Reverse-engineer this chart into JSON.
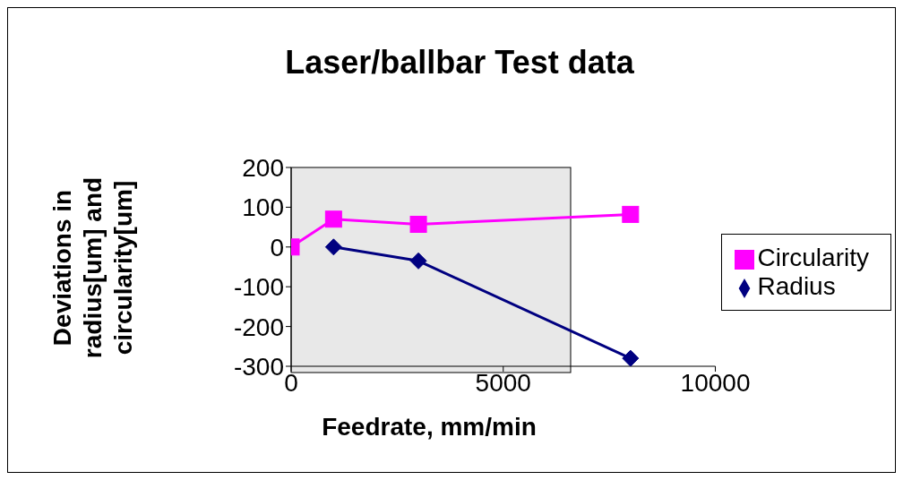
{
  "chart_data": {
    "type": "line",
    "title": "Laser/ballbar Test data",
    "xlabel": "Feedrate, mm/min",
    "ylabel": "Deviations in radius[um] and circularity[um]",
    "xlim": [
      0,
      10000
    ],
    "xticks": [
      0,
      5000,
      10000
    ],
    "ylim": [
      -300,
      200
    ],
    "yticks": [
      -300,
      -200,
      -100,
      0,
      100,
      200
    ],
    "grid": false,
    "legend": "right",
    "series": [
      {
        "name": "Radius",
        "color": "#000080",
        "marker": "diamond",
        "x": [
          1000,
          3000,
          8000
        ],
        "values": [
          0,
          -35,
          -280
        ]
      },
      {
        "name": "Circularity",
        "color": "#ff00ff",
        "marker": "square",
        "x": [
          0,
          1000,
          3000,
          8000
        ],
        "values": [
          0,
          70,
          57,
          82
        ]
      }
    ]
  }
}
